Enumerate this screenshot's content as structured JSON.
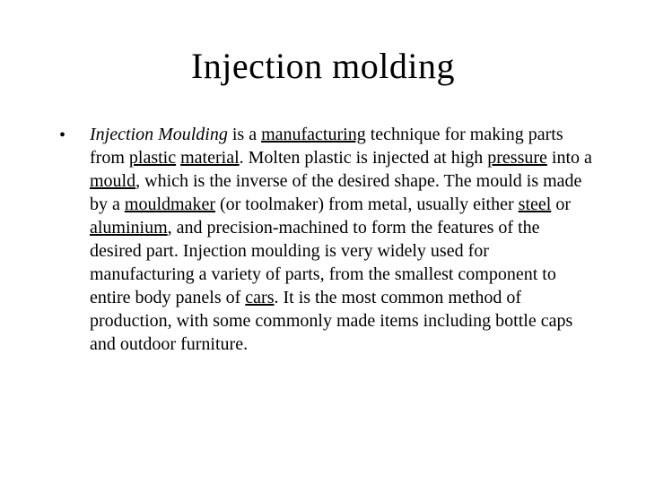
{
  "title": "Injection molding",
  "bullet_marker": "•",
  "segments": {
    "s0": " ",
    "s1": "Injection Moulding",
    "s2": " is a ",
    "s3": "manufacturing",
    "s4": " technique for making parts from ",
    "s5": "plastic",
    "s6": " ",
    "s7": "material",
    "s8": ". Molten plastic is injected at high ",
    "s9": "pressure",
    "s10": " into a ",
    "s11": "mould",
    "s12": ", which is the inverse of the desired shape. The mould is made by a ",
    "s13": "mouldmaker",
    "s14": " (or toolmaker) from metal, usually either ",
    "s15": "steel",
    "s16": " or ",
    "s17": "aluminium",
    "s18": ", and precision-machined to form the features of the desired part. Injection moulding is very widely used for manufacturing a variety of parts, from the smallest component to entire body panels of ",
    "s19": "cars",
    "s20": ". It is the most common method of production, with some commonly made items including bottle caps and outdoor furniture."
  },
  "colors": {
    "background": "#ffffff",
    "text": "#000000"
  },
  "typography": {
    "title_fontsize": 40,
    "body_fontsize": 20,
    "font_family": "Times New Roman"
  }
}
